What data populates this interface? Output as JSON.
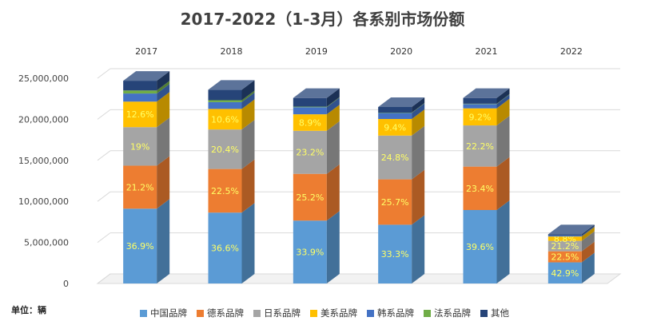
{
  "chart_data": {
    "type": "bar",
    "stacked": true,
    "title": "2017-2022（1-3月）各系别市场份额",
    "unit_label": "单位：辆",
    "categories": [
      "2017",
      "2018",
      "2019",
      "2020",
      "2021",
      "2022"
    ],
    "ylim": [
      0,
      25000000
    ],
    "y_ticks": [
      "0",
      "5,000,000",
      "10,000,000",
      "15,000,000",
      "20,000,000",
      "25,000,000"
    ],
    "grid": true,
    "legend_position": "bottom",
    "totals": [
      24700000,
      23600000,
      22600000,
      21500000,
      22600000,
      6000000
    ],
    "series": [
      {
        "name": "中国品牌",
        "color": "#5b9bd5",
        "percents": [
          36.9,
          36.6,
          33.9,
          33.3,
          39.6,
          42.9
        ],
        "labels": [
          "36.9%",
          "36.6%",
          "33.9%",
          "33.3%",
          "39.6%",
          "42.9%"
        ]
      },
      {
        "name": "德系品牌",
        "color": "#ed7d31",
        "percents": [
          21.2,
          22.5,
          25.2,
          25.7,
          23.4,
          22.5
        ],
        "labels": [
          "21.2%",
          "22.5%",
          "25.2%",
          "25.7%",
          "23.4%",
          "22.5%"
        ]
      },
      {
        "name": "日系品牌",
        "color": "#a5a5a5",
        "percents": [
          19.0,
          20.4,
          23.2,
          24.8,
          22.2,
          21.2
        ],
        "labels": [
          "19%",
          "20.4%",
          "23.2%",
          "24.8%",
          "22.2%",
          "21.2%"
        ]
      },
      {
        "name": "美系品牌",
        "color": "#ffc000",
        "percents": [
          12.6,
          10.6,
          8.9,
          9.4,
          9.2,
          8.8
        ],
        "labels": [
          "12.6%",
          "10.6%",
          "8.9%",
          "9.4%",
          "9.2%",
          "8.8%"
        ]
      },
      {
        "name": "韩系品牌",
        "color": "#4472c4",
        "percents": [
          4.0,
          3.5,
          3.8,
          3.4,
          2.3,
          2.0
        ],
        "labels": [
          "",
          "",
          "",
          "",
          "",
          ""
        ]
      },
      {
        "name": "法系品牌",
        "color": "#70ad47",
        "percents": [
          1.5,
          1.0,
          0.3,
          0.2,
          0.2,
          0.1
        ],
        "labels": [
          "",
          "",
          "",
          "",
          "",
          ""
        ]
      },
      {
        "name": "其他",
        "color": "#264478",
        "percents": [
          4.8,
          5.4,
          4.7,
          3.2,
          3.1,
          2.5
        ],
        "labels": [
          "",
          "",
          "",
          "",
          "",
          ""
        ]
      }
    ]
  }
}
